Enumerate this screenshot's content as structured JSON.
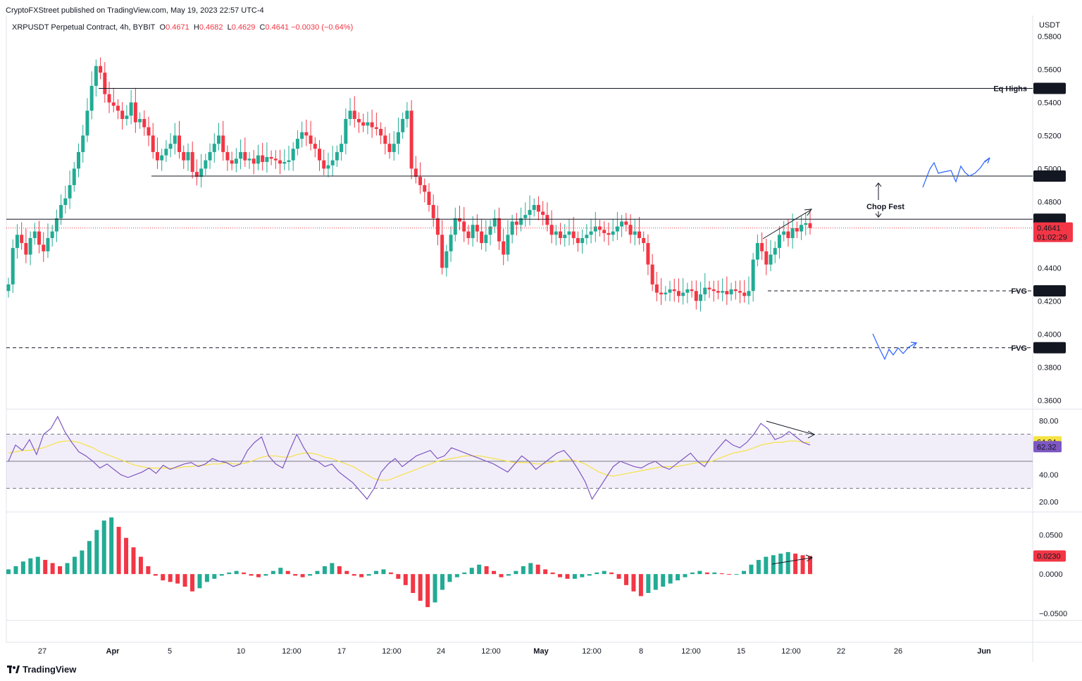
{
  "header": {
    "published": "CryptoFXStreet published on TradingView.com, May 19, 2023 22:57 UTC-4",
    "symbol": "XRPUSDT Perpetual Contract, 4h, BYBIT",
    "o_label": "O",
    "o_value": "0.4671",
    "h_label": "H",
    "h_value": "0.4682",
    "l_label": "L",
    "l_value": "0.4629",
    "c_label": "C",
    "c_value": "0.4641",
    "change": "−0.0030 (−0.64%)"
  },
  "brand": "TradingView",
  "colors": {
    "up": "#22ab94",
    "down": "#f23645",
    "rsi": "#7e57c2",
    "rsi_ma": "#f5e243",
    "drawing": "#2962ff"
  },
  "chart_data": [
    {
      "type": "candlestick",
      "title": "XRPUSDT Perpetual Contract, 4h, BYBIT",
      "ylabel": "USDT",
      "ylim": [
        0.355,
        0.59
      ],
      "yticks": [
        "0.5800",
        "0.5600",
        "0.5400",
        "0.5200",
        "0.5000",
        "0.4800",
        "0.4600",
        "0.4400",
        "0.4200",
        "0.4000",
        "0.3800",
        "0.3600"
      ],
      "xticks": [
        "27",
        "Apr",
        "5",
        "10",
        "12:00",
        "17",
        "12:00",
        "24",
        "12:00",
        "May",
        "12:00",
        "8",
        "12:00",
        "15",
        "12:00",
        "22",
        "26",
        "Jun"
      ],
      "levels": [
        {
          "price": 0.5485,
          "label": "0.5485",
          "note": "Eq Highs",
          "style": "solid"
        },
        {
          "price": 0.4955,
          "label": "0.4955",
          "note": "",
          "style": "solid"
        },
        {
          "price": 0.4694,
          "label": "0.4694",
          "note": "",
          "style": "solid"
        },
        {
          "price": 0.4261,
          "label": "0.4261",
          "note": "FVG",
          "style": "dashed"
        },
        {
          "price": 0.3917,
          "label": "0.3917",
          "note": "FVG",
          "style": "dashed"
        }
      ],
      "last_price": "0.4641",
      "countdown": "01:02:29",
      "annotation": "Chop Fest",
      "closes": [
        0.43,
        0.452,
        0.46,
        0.455,
        0.448,
        0.458,
        0.462,
        0.454,
        0.45,
        0.458,
        0.462,
        0.47,
        0.478,
        0.482,
        0.49,
        0.5,
        0.51,
        0.52,
        0.535,
        0.55,
        0.562,
        0.558,
        0.545,
        0.54,
        0.538,
        0.535,
        0.53,
        0.532,
        0.54,
        0.528,
        0.53,
        0.525,
        0.52,
        0.51,
        0.505,
        0.508,
        0.512,
        0.515,
        0.52,
        0.51,
        0.505,
        0.51,
        0.498,
        0.495,
        0.5,
        0.505,
        0.51,
        0.515,
        0.52,
        0.51,
        0.505,
        0.503,
        0.506,
        0.51,
        0.505,
        0.506,
        0.503,
        0.508,
        0.504,
        0.507,
        0.506,
        0.505,
        0.503,
        0.504,
        0.505,
        0.512,
        0.518,
        0.522,
        0.52,
        0.515,
        0.512,
        0.505,
        0.5,
        0.502,
        0.505,
        0.51,
        0.515,
        0.53,
        0.535,
        0.53,
        0.528,
        0.526,
        0.528,
        0.525,
        0.524,
        0.52,
        0.515,
        0.51,
        0.515,
        0.522,
        0.53,
        0.535,
        0.5,
        0.495,
        0.49,
        0.486,
        0.478,
        0.47,
        0.46,
        0.44,
        0.45,
        0.46,
        0.47,
        0.468,
        0.462,
        0.458,
        0.466,
        0.462,
        0.455,
        0.46,
        0.465,
        0.47,
        0.456,
        0.448,
        0.46,
        0.468,
        0.466,
        0.47,
        0.472,
        0.475,
        0.478,
        0.474,
        0.472,
        0.466,
        0.46,
        0.462,
        0.458,
        0.46,
        0.462,
        0.458,
        0.455,
        0.458,
        0.46,
        0.462,
        0.465,
        0.463,
        0.461,
        0.46,
        0.462,
        0.465,
        0.468,
        0.466,
        0.46,
        0.462,
        0.458,
        0.455,
        0.442,
        0.43,
        0.425,
        0.424,
        0.425,
        0.427,
        0.426,
        0.423,
        0.425,
        0.427,
        0.426,
        0.42,
        0.424,
        0.428,
        0.427,
        0.426,
        0.425,
        0.426,
        0.424,
        0.427,
        0.426,
        0.425,
        0.423,
        0.426,
        0.445,
        0.455,
        0.45,
        0.442,
        0.448,
        0.452,
        0.46,
        0.462,
        0.458,
        0.464,
        0.462,
        0.466,
        0.467,
        0.4641
      ],
      "rsi": {
        "ylim": [
          13,
          88
        ],
        "yticks": [
          "80.00",
          "40.00",
          "20.00"
        ],
        "band": [
          30,
          70
        ],
        "mid": 50,
        "rsi_value": "62.32",
        "ma_value": "64.34",
        "values": [
          50,
          62,
          58,
          66,
          55,
          70,
          74,
          83,
          72,
          64,
          57,
          54,
          50,
          45,
          48,
          44,
          40,
          38,
          40,
          42,
          45,
          41,
          47,
          44,
          46,
          48,
          49,
          46,
          48,
          52,
          50,
          49,
          46,
          48,
          58,
          64,
          68,
          54,
          48,
          45,
          58,
          70,
          60,
          52,
          50,
          46,
          48,
          42,
          38,
          34,
          28,
          22,
          30,
          42,
          48,
          52,
          46,
          50,
          54,
          56,
          58,
          52,
          54,
          60,
          58,
          56,
          54,
          52,
          50,
          48,
          45,
          42,
          48,
          54,
          50,
          44,
          48,
          52,
          56,
          58,
          52,
          44,
          35,
          22,
          30,
          38,
          46,
          50,
          48,
          46,
          45,
          48,
          50,
          46,
          44,
          48,
          52,
          56,
          50,
          46,
          54,
          60,
          66,
          62,
          60,
          64,
          70,
          78,
          74,
          66,
          68,
          72,
          68,
          64,
          62
        ],
        "ma": [
          56,
          57,
          58,
          58,
          59,
          60,
          62,
          64,
          65,
          65,
          64,
          62,
          60,
          57,
          55,
          53,
          51,
          49,
          47,
          46,
          45,
          45,
          45,
          45,
          45,
          46,
          46,
          47,
          47,
          48,
          48,
          49,
          48,
          48,
          49,
          51,
          53,
          54,
          54,
          53,
          53,
          55,
          56,
          56,
          55,
          53,
          52,
          50,
          48,
          46,
          43,
          40,
          37,
          36,
          36,
          38,
          40,
          42,
          44,
          46,
          48,
          50,
          51,
          52,
          53,
          54,
          54,
          54,
          53,
          52,
          51,
          50,
          49,
          49,
          49,
          48,
          48,
          49,
          50,
          51,
          51,
          50,
          48,
          45,
          42,
          40,
          39,
          40,
          41,
          42,
          43,
          44,
          45,
          46,
          46,
          46,
          47,
          48,
          49,
          49,
          50,
          52,
          54,
          56,
          57,
          58,
          60,
          62,
          63,
          64,
          64,
          65,
          65,
          64,
          64
        ]
      },
      "histogram": {
        "ylim": [
          -0.058,
          0.078
        ],
        "yticks": [
          "0.0500",
          "0.0000",
          "−0.0500"
        ],
        "last_value": "0.0230",
        "values": [
          0.006,
          0.01,
          0.016,
          0.02,
          0.022,
          0.018,
          0.014,
          0.01,
          0.014,
          0.022,
          0.03,
          0.042,
          0.056,
          0.068,
          0.072,
          0.06,
          0.046,
          0.034,
          0.022,
          0.01,
          -0.002,
          -0.008,
          -0.01,
          -0.012,
          -0.016,
          -0.022,
          -0.018,
          -0.01,
          -0.006,
          -0.002,
          0.002,
          0.004,
          0.002,
          -0.002,
          -0.004,
          -0.002,
          0.004,
          0.008,
          0.004,
          -0.002,
          -0.004,
          -0.002,
          0.004,
          0.01,
          0.014,
          0.01,
          0.004,
          -0.002,
          -0.004,
          -0.002,
          0.004,
          0.006,
          0.002,
          -0.006,
          -0.014,
          -0.024,
          -0.034,
          -0.042,
          -0.036,
          -0.02,
          -0.01,
          -0.004,
          0.002,
          0.008,
          0.012,
          0.01,
          0.004,
          -0.004,
          -0.002,
          0.004,
          0.01,
          0.014,
          0.012,
          0.006,
          0.002,
          -0.004,
          -0.006,
          -0.006,
          -0.004,
          -0.002,
          0.002,
          0.004,
          0.002,
          -0.006,
          -0.014,
          -0.022,
          -0.028,
          -0.024,
          -0.02,
          -0.016,
          -0.012,
          -0.008,
          -0.004,
          0.002,
          0.004,
          0.002,
          0.002,
          0.001,
          0.0,
          0.0,
          0.004,
          0.012,
          0.018,
          0.022,
          0.024,
          0.026,
          0.028,
          0.026,
          0.024,
          0.023
        ]
      }
    }
  ]
}
